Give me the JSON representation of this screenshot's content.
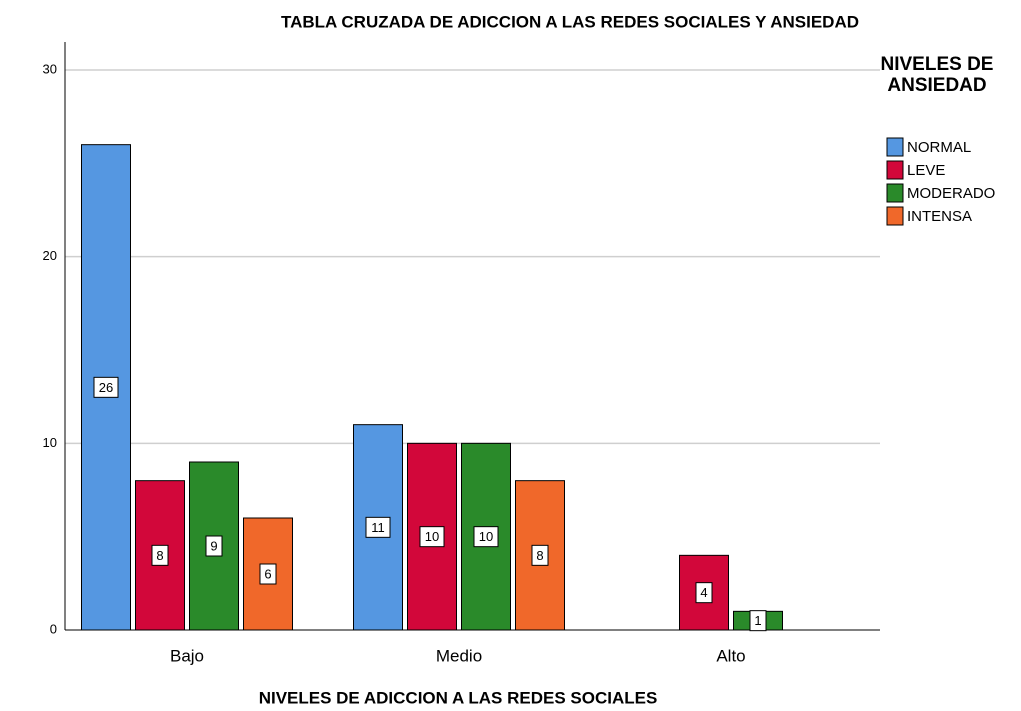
{
  "chart_data": {
    "type": "bar",
    "title": "TABLA CRUZADA DE ADICCION A LAS REDES SOCIALES Y ANSIEDAD",
    "x_label": "NIVELES DE ADICCION A LAS REDES SOCIALES",
    "legend_title": "NIVELES DE ANSIEDAD",
    "categories": [
      "Bajo",
      "Medio",
      "Alto"
    ],
    "series": [
      {
        "name": "NORMAL",
        "color": "#5597e1",
        "values": [
          26,
          11,
          null
        ]
      },
      {
        "name": "LEVE",
        "color": "#d2073a",
        "values": [
          8,
          10,
          4
        ]
      },
      {
        "name": "MODERADO",
        "color": "#2a8a2a",
        "values": [
          9,
          10,
          1
        ]
      },
      {
        "name": "INTENSA",
        "color": "#f0682a",
        "values": [
          6,
          8,
          null
        ]
      }
    ],
    "ylim": [
      0,
      31.5
    ],
    "yticks": [
      0,
      10,
      20,
      30
    ],
    "grid": true,
    "legend": "right"
  }
}
